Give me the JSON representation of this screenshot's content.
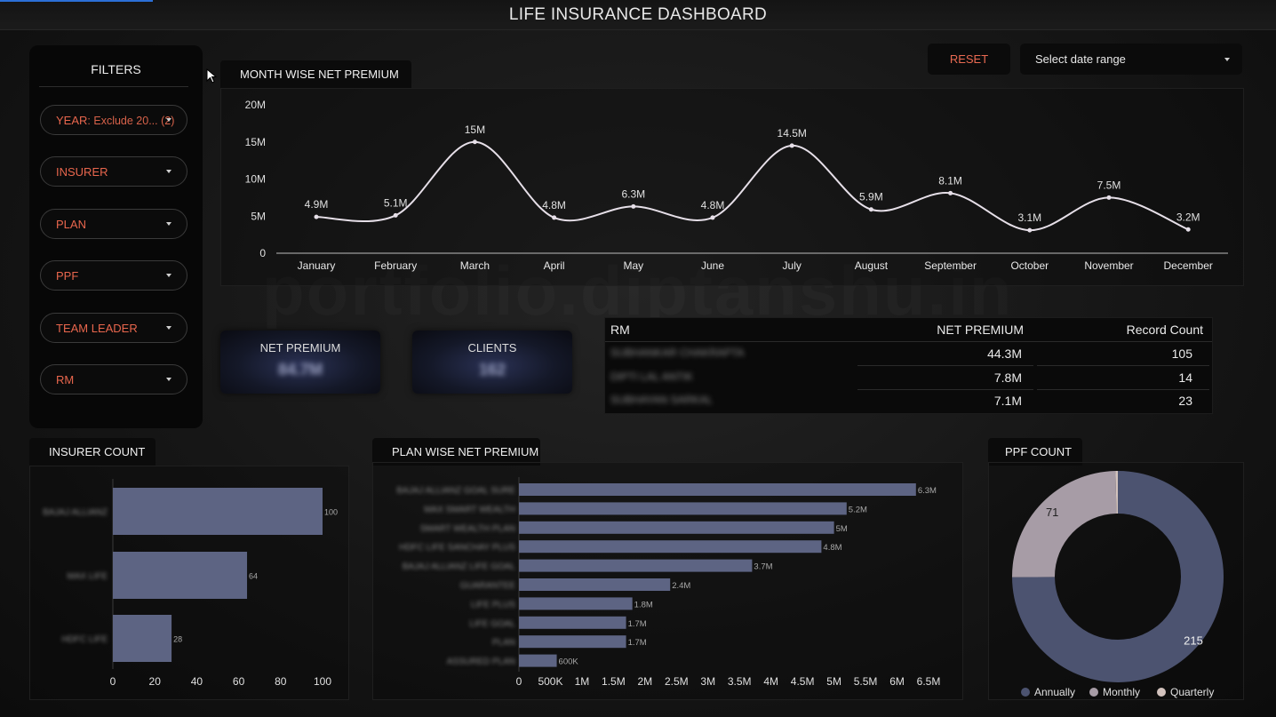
{
  "header": {
    "title": "LIFE INSURANCE DASHBOARD"
  },
  "colors": {
    "accent": "#e8664d",
    "series": "#e6dfe8",
    "bar": "#5d6483",
    "annually": "#4c5370",
    "monthly": "#a79ca6",
    "quarterly": "#d2c2bd"
  },
  "watermark": "portfolio.diptanshu.in",
  "filters": {
    "title": "FILTERS",
    "items": [
      {
        "label": "YEAR",
        "value": ": Exclude 20... (2)"
      },
      {
        "label": "INSURER",
        "value": ""
      },
      {
        "label": "PLAN",
        "value": ""
      },
      {
        "label": "PPF",
        "value": ""
      },
      {
        "label": "TEAM LEADER",
        "value": ""
      },
      {
        "label": "RM",
        "value": ""
      }
    ]
  },
  "controls": {
    "reset_label": "RESET",
    "date_range_label": "Select date range"
  },
  "month_chart": {
    "title": "MONTH WISE NET PREMIUM",
    "chart_data": {
      "type": "line",
      "categories": [
        "January",
        "February",
        "March",
        "April",
        "May",
        "June",
        "July",
        "August",
        "September",
        "October",
        "November",
        "December"
      ],
      "values": [
        4.9,
        5.1,
        15,
        4.8,
        6.3,
        4.8,
        14.5,
        5.9,
        8.1,
        3.1,
        7.5,
        3.2
      ],
      "data_labels": [
        "4.9M",
        "5.1M",
        "15M",
        "4.8M",
        "6.3M",
        "4.8M",
        "14.5M",
        "5.9M",
        "8.1M",
        "3.1M",
        "7.5M",
        "3.2M"
      ],
      "yticks": [
        "0",
        "5M",
        "10M",
        "15M",
        "20M"
      ],
      "ylim": [
        0,
        20
      ],
      "unit": "M"
    }
  },
  "kpis": {
    "net_premium": {
      "label": "NET PREMIUM",
      "value": "84.7M"
    },
    "clients": {
      "label": "CLIENTS",
      "value": "162"
    }
  },
  "rm_table": {
    "headers": [
      "RM",
      "NET PREMIUM",
      "Record Count"
    ],
    "rows": [
      {
        "rm": "SUBHANKAR CHAKRAPTA",
        "premium": "44.3M",
        "count": "105"
      },
      {
        "rm": "DIPTI LAL ANTIK",
        "premium": "7.8M",
        "count": "14"
      },
      {
        "rm": "SUBHAYAN SARKAL",
        "premium": "7.1M",
        "count": "23"
      }
    ]
  },
  "insurer_chart": {
    "title": "INSURER COUNT",
    "chart_data": {
      "type": "bar",
      "orientation": "horizontal",
      "categories": [
        "BAJAJ ALLIANZ",
        "MAX LIFE",
        "HDFC LIFE"
      ],
      "values": [
        100,
        64,
        28
      ],
      "xticks": [
        "0",
        "20",
        "40",
        "60",
        "80",
        "100"
      ],
      "xlim": [
        0,
        100
      ]
    }
  },
  "plan_chart": {
    "title": "PLAN WISE NET PREMIUM",
    "chart_data": {
      "type": "bar",
      "orientation": "horizontal",
      "categories": [
        "BAJAJ ALLIANZ GOAL SURE",
        "MAX SMART WEALTH",
        "SMART WEALTH PLAN",
        "HDFC LIFE SANCHAY PLUS",
        "BAJAJ ALLIANZ LIFE GOAL",
        "GUARANTEE",
        "LIFE PLUS",
        "LIFE GOAL",
        "PLAN",
        "ASSURED PLAN"
      ],
      "values": [
        6.3,
        5.2,
        5.0,
        4.8,
        3.7,
        2.4,
        1.8,
        1.7,
        1.7,
        0.6
      ],
      "data_labels": [
        "6.3M",
        "5.2M",
        "5M",
        "4.8M",
        "3.7M",
        "2.4M",
        "1.8M",
        "1.7M",
        "1.7M",
        "600K"
      ],
      "xticks": [
        "0",
        "500K",
        "1M",
        "1.5M",
        "2M",
        "2.5M",
        "3M",
        "3.5M",
        "4M",
        "4.5M",
        "5M",
        "5.5M",
        "6M",
        "6.5M"
      ],
      "xlim": [
        0,
        6.5
      ]
    }
  },
  "ppf_chart": {
    "title": "PPF COUNT",
    "chart_data": {
      "type": "pie",
      "donut": true,
      "slices": [
        {
          "name": "Annually",
          "value": 215
        },
        {
          "name": "Monthly",
          "value": 71
        },
        {
          "name": "Quarterly",
          "value": 1
        }
      ],
      "legend": [
        "Annually",
        "Monthly",
        "Quarterly"
      ],
      "legend_position": "bottom"
    }
  }
}
